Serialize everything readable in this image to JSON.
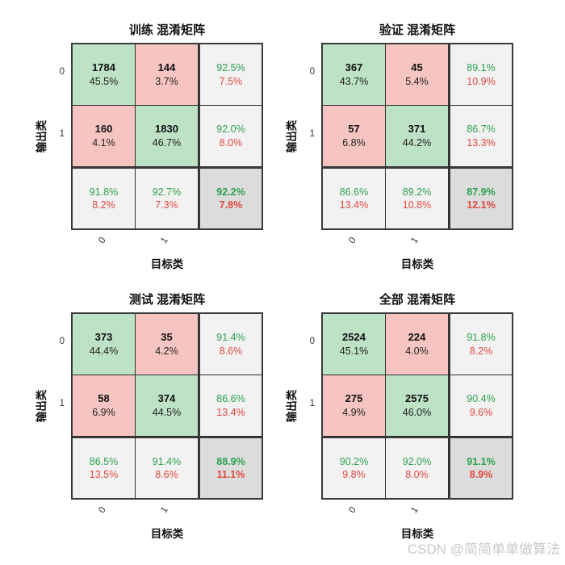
{
  "watermark": "CSDN @简简单单做算法",
  "colors": {
    "diagonal_cell_bg": "#bde2c6",
    "offdiagonal_cell_bg": "#f6c5c1",
    "summary_cell_bg": "#f2f2f2",
    "total_cell_bg": "#dcdcdc",
    "green_text": "#2ea14e",
    "red_text": "#e04840",
    "grid_border": "#3a3a3a"
  },
  "chart_data": [
    {
      "type": "heatmap",
      "title": "训练 混淆矩阵",
      "xlabel": "目标类",
      "ylabel": "输出类",
      "x_ticks": [
        "0",
        "1"
      ],
      "y_ticks": [
        "0",
        "1"
      ],
      "counts": [
        [
          1784,
          144
        ],
        [
          160,
          1830
        ]
      ],
      "cells": {
        "r0c0": {
          "count": "1784",
          "pct": "45.5%"
        },
        "r0c1": {
          "count": "144",
          "pct": "3.7%"
        },
        "r0s": {
          "green": "92.5%",
          "red": "7.5%"
        },
        "r1c0": {
          "count": "160",
          "pct": "4.1%"
        },
        "r1c1": {
          "count": "1830",
          "pct": "46.7%"
        },
        "r1s": {
          "green": "92.0%",
          "red": "8.0%"
        },
        "c0s": {
          "green": "91.8%",
          "red": "8.2%"
        },
        "c1s": {
          "green": "92.7%",
          "red": "7.3%"
        },
        "total": {
          "green": "92.2%",
          "red": "7.8%"
        }
      }
    },
    {
      "type": "heatmap",
      "title": "验证 混淆矩阵",
      "xlabel": "目标类",
      "ylabel": "输出类",
      "x_ticks": [
        "0",
        "1"
      ],
      "y_ticks": [
        "0",
        "1"
      ],
      "counts": [
        [
          367,
          45
        ],
        [
          57,
          371
        ]
      ],
      "cells": {
        "r0c0": {
          "count": "367",
          "pct": "43.7%"
        },
        "r0c1": {
          "count": "45",
          "pct": "5.4%"
        },
        "r0s": {
          "green": "89.1%",
          "red": "10.9%"
        },
        "r1c0": {
          "count": "57",
          "pct": "6.8%"
        },
        "r1c1": {
          "count": "371",
          "pct": "44.2%"
        },
        "r1s": {
          "green": "86.7%",
          "red": "13.3%"
        },
        "c0s": {
          "green": "86.6%",
          "red": "13.4%"
        },
        "c1s": {
          "green": "89.2%",
          "red": "10.8%"
        },
        "total": {
          "green": "87.9%",
          "red": "12.1%"
        }
      }
    },
    {
      "type": "heatmap",
      "title": "测试 混淆矩阵",
      "xlabel": "目标类",
      "ylabel": "输出类",
      "x_ticks": [
        "0",
        "1"
      ],
      "y_ticks": [
        "0",
        "1"
      ],
      "counts": [
        [
          373,
          35
        ],
        [
          58,
          374
        ]
      ],
      "cells": {
        "r0c0": {
          "count": "373",
          "pct": "44.4%"
        },
        "r0c1": {
          "count": "35",
          "pct": "4.2%"
        },
        "r0s": {
          "green": "91.4%",
          "red": "8.6%"
        },
        "r1c0": {
          "count": "58",
          "pct": "6.9%"
        },
        "r1c1": {
          "count": "374",
          "pct": "44.5%"
        },
        "r1s": {
          "green": "86.6%",
          "red": "13.4%"
        },
        "c0s": {
          "green": "86.5%",
          "red": "13.5%"
        },
        "c1s": {
          "green": "91.4%",
          "red": "8.6%"
        },
        "total": {
          "green": "88.9%",
          "red": "11.1%"
        }
      }
    },
    {
      "type": "heatmap",
      "title": "全部 混淆矩阵",
      "xlabel": "目标类",
      "ylabel": "输出类",
      "x_ticks": [
        "0",
        "1"
      ],
      "y_ticks": [
        "0",
        "1"
      ],
      "counts": [
        [
          2524,
          224
        ],
        [
          275,
          2575
        ]
      ],
      "cells": {
        "r0c0": {
          "count": "2524",
          "pct": "45.1%"
        },
        "r0c1": {
          "count": "224",
          "pct": "4.0%"
        },
        "r0s": {
          "green": "91.8%",
          "red": "8.2%"
        },
        "r1c0": {
          "count": "275",
          "pct": "4.9%"
        },
        "r1c1": {
          "count": "2575",
          "pct": "46.0%"
        },
        "r1s": {
          "green": "90.4%",
          "red": "9.6%"
        },
        "c0s": {
          "green": "90.2%",
          "red": "9.8%"
        },
        "c1s": {
          "green": "92.0%",
          "red": "8.0%"
        },
        "total": {
          "green": "91.1%",
          "red": "8.9%"
        }
      }
    }
  ]
}
